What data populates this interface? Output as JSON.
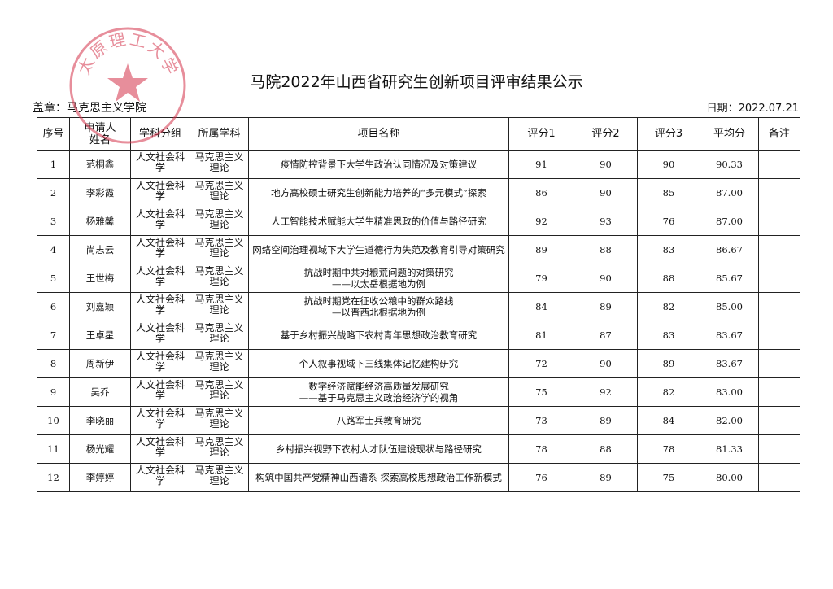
{
  "title": "马院2022年山西省研究生创新项目评审结果公示",
  "seal_label": "盖章：马克思主义学院",
  "date_label": "日期：2022.07.21",
  "stamp_text": "太原理工大学",
  "stamp_color": "#d4324a",
  "headers": [
    "序号",
    "申请人\n姓名",
    "学科分组",
    "所属学科",
    "项目名称",
    "评分1",
    "评分2",
    "评分3",
    "平均分",
    "备注"
  ],
  "rows": [
    [
      "1",
      "范桐鑫",
      "人文社会科学",
      "马克思主义理论",
      "疫情防控背景下大学生政治认同情况及对策建议",
      "91",
      "90",
      "90",
      "90.33",
      ""
    ],
    [
      "2",
      "李彩霞",
      "人文社会科学",
      "马克思主义理论",
      "地方高校硕士研究生创新能力培养的“多元模式”探索",
      "86",
      "90",
      "85",
      "87.00",
      ""
    ],
    [
      "3",
      "杨雅馨",
      "人文社会科学",
      "马克思主义理论",
      "人工智能技术赋能大学生精准思政的价值与路径研究",
      "92",
      "93",
      "76",
      "87.00",
      ""
    ],
    [
      "4",
      "尚志云",
      "人文社会科学",
      "马克思主义理论",
      "网络空间治理视域下大学生道德行为失范及教育引导对策研究",
      "89",
      "88",
      "83",
      "86.67",
      ""
    ],
    [
      "5",
      "王世梅",
      "人文社会科学",
      "马克思主义理论",
      "抗战时期中共对粮荒问题的对策研究\n——以太岳根据地为例",
      "79",
      "90",
      "88",
      "85.67",
      ""
    ],
    [
      "6",
      "刘嘉颖",
      "人文社会科学",
      "马克思主义理论",
      "抗战时期党在征收公粮中的群众路线\n—以晋西北根据地为例",
      "84",
      "89",
      "82",
      "85.00",
      ""
    ],
    [
      "7",
      "王卓星",
      "人文社会科学",
      "马克思主义理论",
      "基于乡村振兴战略下农村青年思想政治教育研究",
      "81",
      "87",
      "83",
      "83.67",
      ""
    ],
    [
      "8",
      "周新伊",
      "人文社会科学",
      "马克思主义理论",
      "个人叙事视域下三线集体记忆建构研究",
      "72",
      "90",
      "89",
      "83.67",
      ""
    ],
    [
      "9",
      "吴乔",
      "人文社会科学",
      "马克思主义理论",
      "数字经济赋能经济高质量发展研究\n——基于马克思主义政治经济学的视角",
      "75",
      "92",
      "82",
      "83.00",
      ""
    ],
    [
      "10",
      "李晓丽",
      "人文社会科学",
      "马克思主义理论",
      "八路军士兵教育研究",
      "73",
      "89",
      "84",
      "82.00",
      ""
    ],
    [
      "11",
      "杨光耀",
      "人文社会科学",
      "马克思主义理论",
      "乡村振兴视野下农村人才队伍建设现状与路径研究",
      "78",
      "88",
      "78",
      "81.33",
      ""
    ],
    [
      "12",
      "李婷婷",
      "人文社会科学",
      "马克思主义理论",
      "构筑中国共产党精神山西谱系 探索高校思想政治工作新模式",
      "76",
      "89",
      "75",
      "80.00",
      ""
    ]
  ]
}
